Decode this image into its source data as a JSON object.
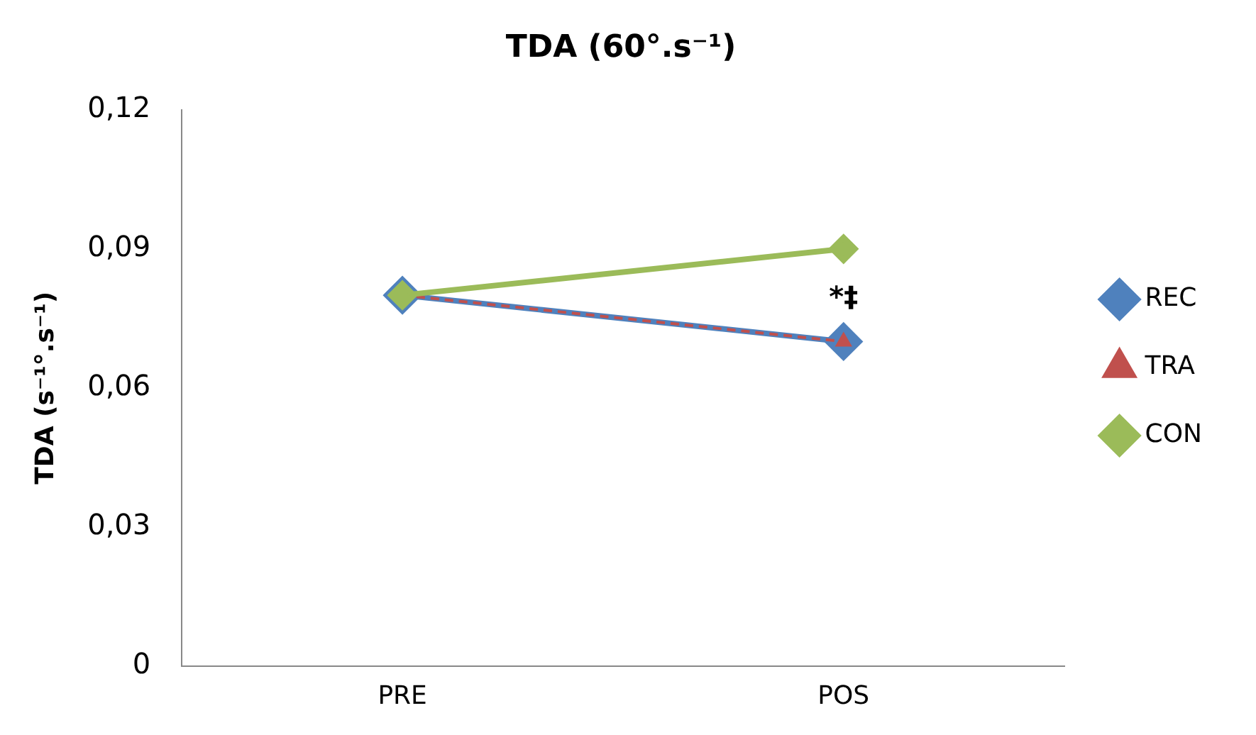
{
  "chart_data": {
    "type": "line",
    "title": "TDA (60°.s⁻¹)",
    "ylabel": "TDA (s⁻¹°.s⁻¹)",
    "categories": [
      "PRE",
      "POS"
    ],
    "series": [
      {
        "name": "REC",
        "color": "#4f81bd",
        "values": [
          0.08,
          0.07
        ],
        "marker": "diamond",
        "line_style": "solid"
      },
      {
        "name": "TRA",
        "color": "#c0504d",
        "values": [
          0.08,
          0.07
        ],
        "marker": "triangle",
        "line_style": "dashed"
      },
      {
        "name": "CON",
        "color": "#9bbb59",
        "values": [
          0.08,
          0.09
        ],
        "marker": "diamond",
        "line_style": "solid"
      }
    ],
    "ylim": [
      0,
      0.12
    ],
    "yticks": [
      {
        "value": 0,
        "label": "0"
      },
      {
        "value": 0.03,
        "label": "0,03"
      },
      {
        "value": 0.06,
        "label": "0,06"
      },
      {
        "value": 0.09,
        "label": "0,09"
      },
      {
        "value": 0.12,
        "label": "0,12"
      }
    ],
    "grid": false,
    "legend": "right",
    "annotations": [
      {
        "text": "*‡",
        "x": "POS",
        "y": 0.07
      }
    ]
  }
}
